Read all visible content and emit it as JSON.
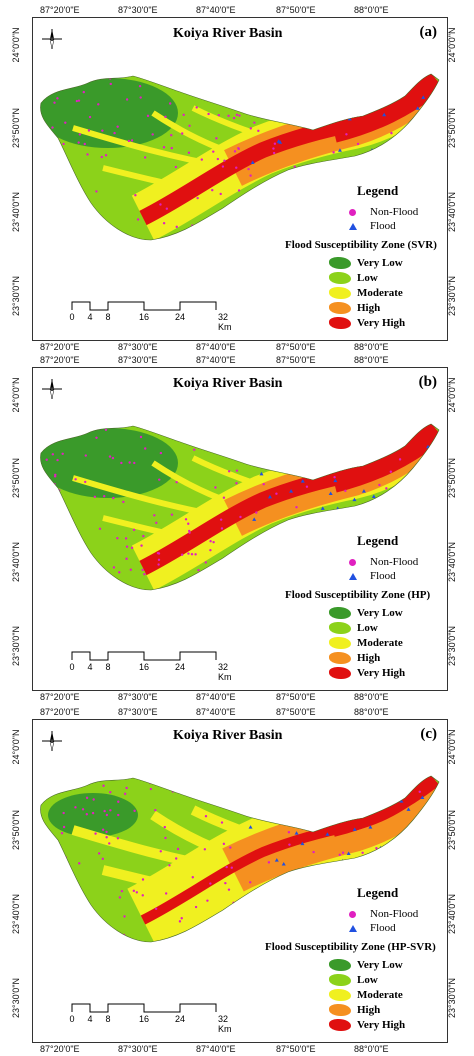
{
  "colors": {
    "very_low": "#3a9a2a",
    "low": "#8cd21a",
    "moderate": "#f0f020",
    "high": "#f59020",
    "very_high": "#e01010",
    "non_flood_dot": "#e020c0",
    "flood_triangle": "#2050e0"
  },
  "axes": {
    "x_labels": [
      "87°20'0\"E",
      "87°30'0\"E",
      "87°40'0\"E",
      "87°50'0\"E",
      "88°0'0\"E"
    ],
    "y_labels": [
      "24°0'0\"N",
      "23°50'0\"N",
      "23°40'0\"N",
      "23°30'0\"N"
    ]
  },
  "scalebar": {
    "ticks": [
      "0",
      "4",
      "8",
      "16",
      "24",
      "32 Km"
    ]
  },
  "legend": {
    "title": "Legend",
    "non_flood": "Non-Flood",
    "flood": "Flood",
    "classes": [
      "Very Low",
      "Low",
      "Moderate",
      "High",
      "Very High"
    ]
  },
  "panels": [
    {
      "label": "(a)",
      "title": "Koiya River Basin",
      "zone_title": "Flood Susceptibility Zone (SVR)"
    },
    {
      "label": "(b)",
      "title": "Koiya River Basin",
      "zone_title": "Flood Susceptibility Zone (HP)"
    },
    {
      "label": "(c)",
      "title": "Koiya River Basin",
      "zone_title": "Flood Susceptibility Zone (HP-SVR)"
    }
  ]
}
